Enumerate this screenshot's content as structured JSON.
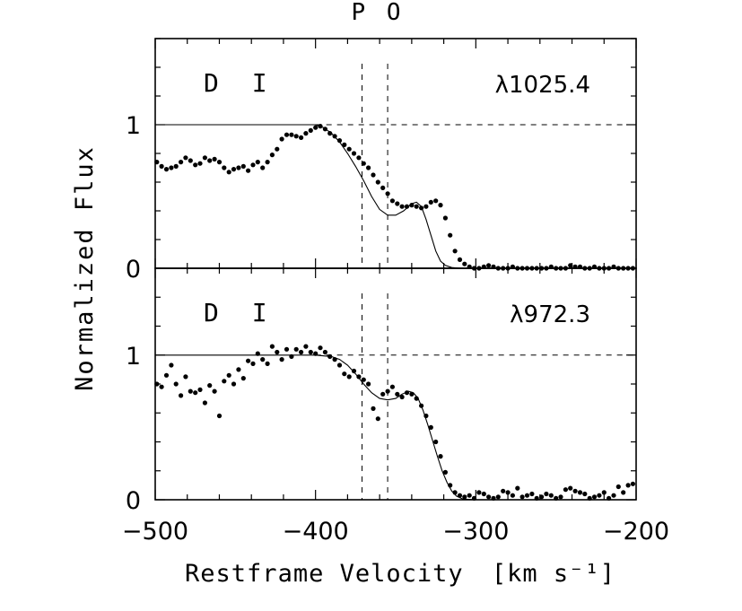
{
  "chart_data": {
    "type": "scatter",
    "title": "P O",
    "xlabel": "Restframe Velocity",
    "xlabel_unit": "[km s⁻¹]",
    "xlim": [
      -500,
      -200
    ],
    "xticks": [
      -500,
      -400,
      -300,
      -200
    ],
    "xticklabels": [
      "−500",
      "−400",
      "−300",
      "−200"
    ],
    "ylabel": "Normalized Flux",
    "shared_vlines": [
      -371,
      -355
    ],
    "panels": [
      {
        "label": "D I",
        "transition": "λ1025.4",
        "ylim": [
          0,
          1.6
        ],
        "yticks": [
          0,
          1
        ],
        "yticklabels": [
          "0",
          "1"
        ],
        "hline": 1,
        "series": [
          {
            "name": "data",
            "x": [
              -499,
              -496,
              -493,
              -490,
              -487,
              -484,
              -481,
              -478,
              -475,
              -472,
              -469,
              -466,
              -463,
              -460,
              -457,
              -454,
              -451,
              -448,
              -445,
              -442,
              -439,
              -436,
              -433,
              -430,
              -427,
              -424,
              -421,
              -418,
              -415,
              -412,
              -409,
              -406,
              -403,
              -400,
              -397,
              -394,
              -391,
              -388,
              -385,
              -382,
              -379,
              -376,
              -373,
              -370,
              -367,
              -364,
              -361,
              -358,
              -355,
              -352,
              -349,
              -346,
              -343,
              -340,
              -337,
              -334,
              -331,
              -328,
              -325,
              -322,
              -319,
              -316,
              -313,
              -310,
              -307,
              -304,
              -301,
              -298,
              -295,
              -292,
              -289,
              -286,
              -283,
              -280,
              -277,
              -274,
              -271,
              -268,
              -265,
              -262,
              -259,
              -256,
              -253,
              -250,
              -247,
              -244,
              -241,
              -238,
              -235,
              -232,
              -229,
              -226,
              -223,
              -220,
              -217,
              -214,
              -211,
              -208,
              -205,
              -202
            ],
            "y": [
              0.74,
              0.71,
              0.69,
              0.7,
              0.71,
              0.74,
              0.77,
              0.75,
              0.72,
              0.73,
              0.77,
              0.75,
              0.76,
              0.74,
              0.7,
              0.67,
              0.69,
              0.7,
              0.71,
              0.68,
              0.72,
              0.74,
              0.7,
              0.74,
              0.79,
              0.83,
              0.9,
              0.93,
              0.93,
              0.92,
              0.91,
              0.94,
              0.96,
              0.98,
              0.99,
              0.97,
              0.94,
              0.92,
              0.89,
              0.86,
              0.83,
              0.8,
              0.77,
              0.73,
              0.7,
              0.65,
              0.6,
              0.56,
              0.52,
              0.47,
              0.45,
              0.43,
              0.43,
              0.44,
              0.43,
              0.42,
              0.43,
              0.46,
              0.47,
              0.44,
              0.35,
              0.23,
              0.12,
              0.06,
              0.03,
              0.01,
              0.0,
              0.0,
              0.01,
              0.02,
              0.01,
              0.0,
              0.0,
              0.0,
              0.01,
              0.0,
              0.0,
              0.0,
              0.0,
              0.0,
              0.0,
              0.0,
              0.01,
              0.0,
              0.0,
              0.0,
              0.02,
              0.01,
              0.01,
              0.0,
              0.0,
              0.01,
              0.0,
              0.0,
              0.0,
              0.01,
              0.0,
              0.0,
              0.0,
              0.0
            ]
          },
          {
            "name": "model",
            "x": [
              -500,
              -470,
              -440,
              -410,
              -400,
              -395,
              -390,
              -385,
              -380,
              -375,
              -370,
              -365,
              -360,
              -355,
              -350,
              -345,
              -340,
              -337,
              -334,
              -331,
              -328,
              -325,
              -322,
              -319,
              -315,
              -310,
              -300,
              -260,
              -200
            ],
            "y": [
              1.0,
              1.0,
              1.0,
              1.0,
              1.0,
              0.98,
              0.94,
              0.88,
              0.8,
              0.71,
              0.61,
              0.5,
              0.41,
              0.37,
              0.37,
              0.4,
              0.45,
              0.46,
              0.43,
              0.34,
              0.23,
              0.12,
              0.05,
              0.02,
              0.005,
              0.0,
              0.0,
              0.0,
              0.0
            ]
          }
        ]
      },
      {
        "label": "D I",
        "transition": "λ972.3",
        "ylim": [
          0,
          1.6
        ],
        "yticks": [
          0,
          1
        ],
        "yticklabels": [
          "0",
          "1"
        ],
        "hline": 1,
        "series": [
          {
            "name": "data",
            "x": [
              -499,
              -496,
              -493,
              -490,
              -487,
              -484,
              -481,
              -478,
              -475,
              -472,
              -469,
              -466,
              -463,
              -460,
              -457,
              -454,
              -451,
              -448,
              -445,
              -442,
              -439,
              -436,
              -433,
              -430,
              -427,
              -424,
              -421,
              -418,
              -415,
              -412,
              -409,
              -406,
              -403,
              -400,
              -397,
              -394,
              -391,
              -388,
              -385,
              -382,
              -379,
              -376,
              -373,
              -370,
              -367,
              -364,
              -361,
              -358,
              -355,
              -352,
              -349,
              -346,
              -343,
              -340,
              -337,
              -334,
              -331,
              -328,
              -325,
              -322,
              -319,
              -316,
              -313,
              -310,
              -307,
              -304,
              -301,
              -298,
              -295,
              -292,
              -289,
              -286,
              -283,
              -280,
              -277,
              -274,
              -271,
              -268,
              -265,
              -262,
              -259,
              -256,
              -253,
              -250,
              -247,
              -244,
              -241,
              -238,
              -235,
              -232,
              -229,
              -226,
              -223,
              -220,
              -217,
              -214,
              -211,
              -208,
              -205,
              -202
            ],
            "y": [
              0.8,
              0.78,
              0.86,
              0.93,
              0.8,
              0.72,
              0.85,
              0.75,
              0.74,
              0.76,
              0.67,
              0.79,
              0.75,
              0.58,
              0.82,
              0.86,
              0.8,
              0.9,
              0.84,
              0.96,
              0.94,
              1.01,
              0.97,
              0.94,
              1.06,
              1.02,
              0.97,
              1.04,
              0.99,
              1.04,
              1.02,
              1.06,
              1.02,
              1.01,
              1.05,
              1.02,
              0.99,
              0.97,
              0.93,
              0.87,
              0.85,
              0.89,
              0.85,
              0.83,
              0.8,
              0.63,
              0.56,
              0.73,
              0.75,
              0.78,
              0.73,
              0.71,
              0.74,
              0.73,
              0.7,
              0.65,
              0.58,
              0.5,
              0.4,
              0.3,
              0.19,
              0.1,
              0.05,
              0.03,
              0.02,
              0.03,
              0.01,
              0.05,
              0.04,
              0.02,
              0.01,
              0.02,
              0.06,
              0.05,
              0.03,
              0.08,
              0.02,
              0.03,
              0.04,
              0.01,
              0.02,
              0.04,
              0.03,
              0.01,
              0.02,
              0.07,
              0.08,
              0.06,
              0.05,
              0.04,
              0.01,
              0.02,
              0.03,
              0.05,
              0.01,
              0.03,
              0.09,
              0.05,
              0.1,
              0.11
            ]
          },
          {
            "name": "model",
            "x": [
              -500,
              -460,
              -420,
              -400,
              -390,
              -385,
              -380,
              -375,
              -370,
              -365,
              -360,
              -355,
              -350,
              -346,
              -342,
              -339,
              -336,
              -333,
              -330,
              -327,
              -324,
              -321,
              -318,
              -315,
              -312,
              -308,
              -300,
              -260,
              -200
            ],
            "y": [
              1.0,
              1.0,
              1.0,
              1.0,
              0.99,
              0.97,
              0.93,
              0.87,
              0.8,
              0.74,
              0.7,
              0.69,
              0.7,
              0.73,
              0.75,
              0.74,
              0.7,
              0.62,
              0.52,
              0.41,
              0.3,
              0.2,
              0.12,
              0.06,
              0.025,
              0.005,
              0.0,
              0.0,
              0.0
            ]
          }
        ]
      }
    ]
  }
}
